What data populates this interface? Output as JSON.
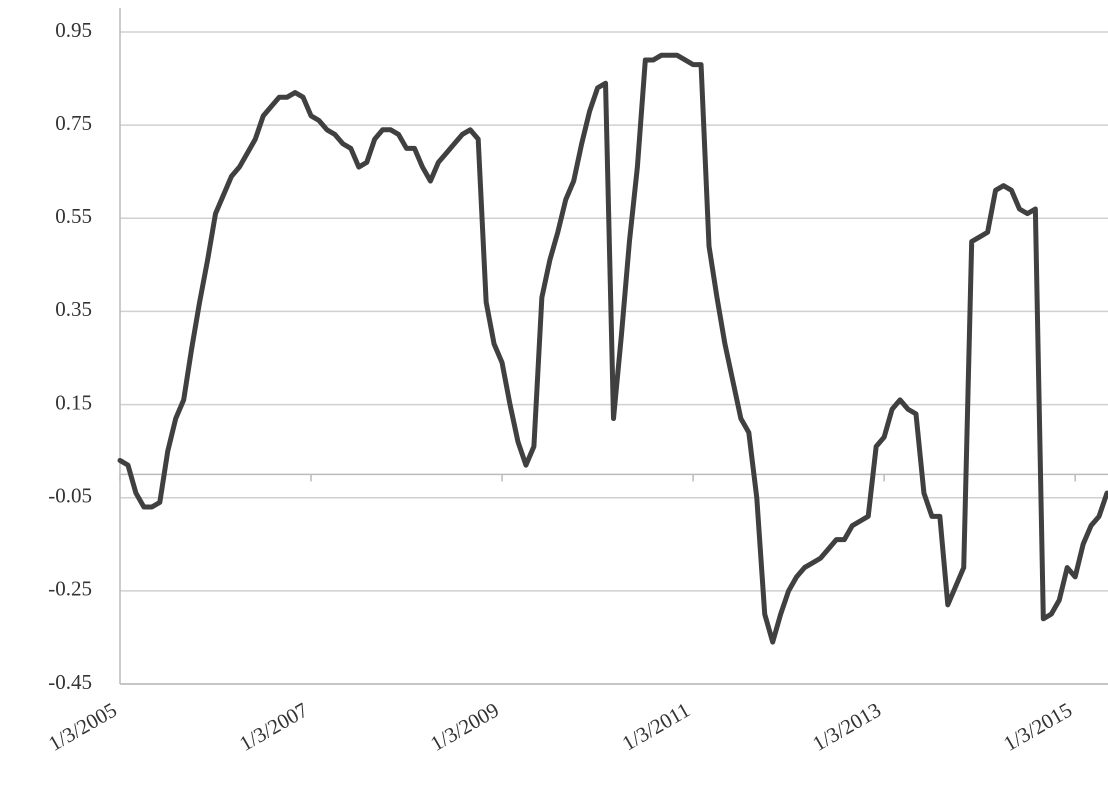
{
  "chart_data": {
    "type": "line",
    "color": "#404040",
    "categories": [
      "1/3/2005",
      null,
      null,
      null,
      null,
      null,
      null,
      null,
      null,
      null,
      null,
      null,
      null,
      null,
      null,
      null,
      null,
      null,
      null,
      null,
      null,
      null,
      null,
      null,
      "1/3/2007",
      null,
      null,
      null,
      null,
      null,
      null,
      null,
      null,
      null,
      null,
      null,
      null,
      null,
      null,
      null,
      null,
      null,
      null,
      null,
      null,
      null,
      null,
      null,
      "1/3/2009",
      null,
      null,
      null,
      null,
      null,
      null,
      null,
      null,
      null,
      null,
      null,
      null,
      null,
      null,
      null,
      null,
      null,
      null,
      null,
      null,
      null,
      null,
      null,
      "1/3/2011",
      null,
      null,
      null,
      null,
      null,
      null,
      null,
      null,
      null,
      null,
      null,
      null,
      null,
      null,
      null,
      null,
      null,
      null,
      null,
      null,
      null,
      null,
      null,
      "1/3/2013",
      null,
      null,
      null,
      null,
      null,
      null,
      null,
      null,
      null,
      null,
      null,
      null,
      null,
      null,
      null,
      null,
      null,
      null,
      null,
      null,
      null,
      null,
      null,
      "1/3/2015",
      null,
      null,
      null,
      null
    ],
    "values": [
      0.03,
      0.02,
      -0.04,
      -0.07,
      -0.07,
      -0.06,
      0.05,
      0.12,
      0.16,
      0.27,
      0.37,
      0.46,
      0.56,
      0.6,
      0.64,
      0.66,
      0.69,
      0.72,
      0.77,
      0.79,
      0.81,
      0.81,
      0.82,
      0.81,
      0.77,
      0.76,
      0.74,
      0.73,
      0.71,
      0.7,
      0.66,
      0.67,
      0.72,
      0.74,
      0.74,
      0.73,
      0.7,
      0.7,
      0.66,
      0.63,
      0.67,
      0.69,
      0.71,
      0.73,
      0.74,
      0.72,
      0.37,
      0.28,
      0.24,
      0.15,
      0.07,
      0.02,
      0.06,
      0.38,
      0.46,
      0.52,
      0.59,
      0.63,
      0.71,
      0.78,
      0.83,
      0.84,
      0.12,
      0.3,
      0.5,
      0.66,
      0.89,
      0.89,
      0.9,
      0.9,
      0.9,
      0.89,
      0.88,
      0.88,
      0.49,
      0.38,
      0.28,
      0.2,
      0.12,
      0.09,
      -0.05,
      -0.3,
      -0.36,
      -0.3,
      -0.25,
      -0.22,
      -0.2,
      -0.19,
      -0.18,
      -0.16,
      -0.14,
      -0.14,
      -0.11,
      -0.1,
      -0.09,
      0.06,
      0.08,
      0.14,
      0.16,
      0.14,
      0.13,
      -0.04,
      -0.09,
      -0.09,
      -0.28,
      -0.24,
      -0.2,
      0.5,
      0.51,
      0.52,
      0.61,
      0.62,
      0.61,
      0.57,
      0.56,
      0.57,
      -0.31,
      -0.3,
      -0.27,
      -0.2,
      -0.22,
      -0.15,
      -0.11,
      -0.09,
      -0.04
    ],
    "ylim": [
      -0.45,
      0.95
    ],
    "yticks": [
      -0.45,
      -0.25,
      -0.05,
      0.15,
      0.35,
      0.55,
      0.75,
      0.95
    ],
    "grid": true
  }
}
